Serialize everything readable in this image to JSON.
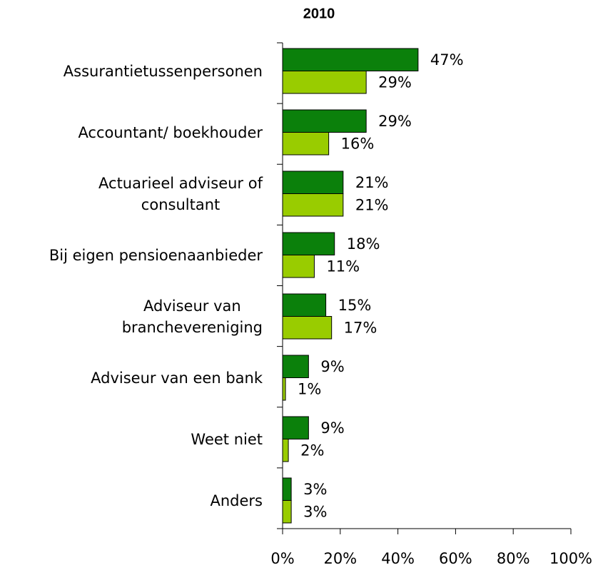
{
  "chart_data": {
    "type": "hbar",
    "title": "2010",
    "categories": [
      "Assurantietussenpersonen",
      "Accountant/  boekhouder",
      "Actuarieel adviseur of\nconsultant",
      "Bij eigen pensioenaanbieder",
      "Adviseur van\nbranchevereniging",
      "Adviseur van een bank",
      "Weet niet",
      "Anders"
    ],
    "series": [
      {
        "color": "#0b800b",
        "values": [
          47,
          29,
          21,
          18,
          15,
          9,
          9,
          3
        ],
        "value_labels": [
          "47%",
          "29%",
          "21%",
          "18%",
          "15%",
          "9%",
          "9%",
          "3%"
        ]
      },
      {
        "color": "#99cc00",
        "values": [
          29,
          16,
          21,
          11,
          17,
          1,
          2,
          3
        ],
        "value_labels": [
          "29%",
          "16%",
          "21%",
          "11%",
          "17%",
          "1%",
          "2%",
          "3%"
        ]
      }
    ],
    "xlim": [
      0,
      100
    ],
    "xticks": [
      {
        "value": 0,
        "label": "0%"
      },
      {
        "value": 20,
        "label": "20%"
      },
      {
        "value": 40,
        "label": "40%"
      },
      {
        "value": 60,
        "label": "60%"
      },
      {
        "value": 80,
        "label": "80%"
      },
      {
        "value": 100,
        "label": "100%"
      }
    ]
  }
}
